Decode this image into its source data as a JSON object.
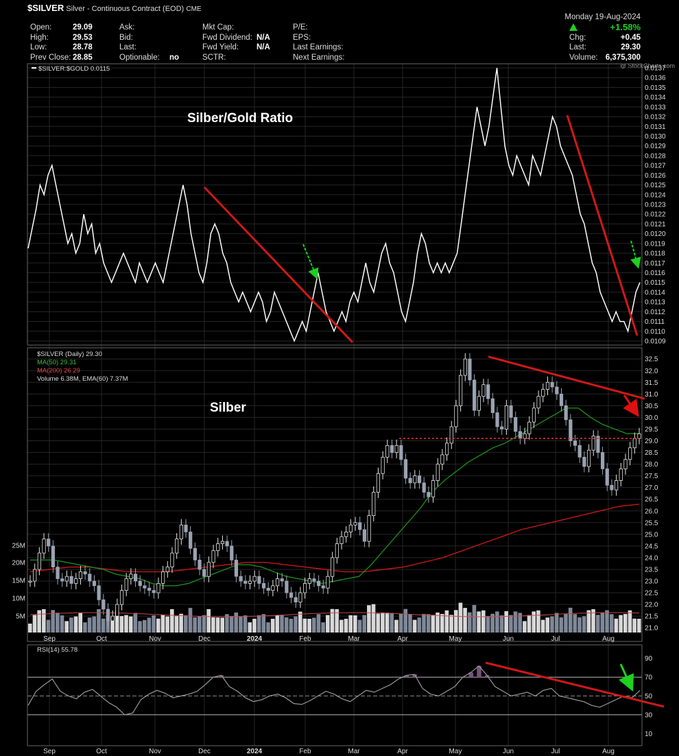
{
  "header": {
    "symbol": "$SILVER",
    "name": "Silver - Continuous Contract (EOD)",
    "exchange": "CME",
    "date": "Monday 19-Aug-2024",
    "change_pct": "+1.58%",
    "stats": {
      "open_label": "Open:",
      "open": "29.09",
      "high_label": "High:",
      "high": "29.53",
      "low_label": "Low:",
      "low": "28.78",
      "prev_label": "Prev Close:",
      "prev": "28.85",
      "ask_label": "Ask:",
      "bid_label": "Bid:",
      "last_label": "Last:",
      "opt_label": "Optionable:",
      "opt": "no",
      "mktcap_label": "Mkt Cap:",
      "fwddiv_label": "Fwd Dividend:",
      "fwddiv": "N/A",
      "fwdyield_label": "Fwd Yield:",
      "fwdyield": "N/A",
      "sctr_label": "SCTR:",
      "pe_label": "P/E:",
      "eps_label": "EPS:",
      "lastearn_label": "Last Earnings:",
      "nextearn_label": "Next Earnings:",
      "chg_label": "Chg:",
      "chg": "+0.45",
      "last2_label": "Last:",
      "last2": "29.30",
      "vol_label": "Volume:",
      "vol": "6,375,300"
    }
  },
  "watermark": "@ StockCharts.com",
  "colors": {
    "up": "#1fd01f",
    "down_arrow": "#e01010",
    "trend": "#d01818",
    "ma50": "#1a8a1a",
    "ma200": "#c41818",
    "rsi_fill": "#7a4f7a"
  },
  "chart_data": [
    {
      "type": "line",
      "panel": "ratio",
      "title": "Silber/Gold Ratio",
      "legend": "$SILVER:$GOLD 0.0115",
      "ylim": [
        0.0109,
        0.0137
      ],
      "yticks": [
        "0.0137",
        "0.0136",
        "0.0135",
        "0.0134",
        "0.0133",
        "0.0132",
        "0.0131",
        "0.0130",
        "0.0129",
        "0.0128",
        "0.0127",
        "0.0126",
        "0.0125",
        "0.0124",
        "0.0123",
        "0.0122",
        "0.0121",
        "0.0120",
        "0.0119",
        "0.0118",
        "0.0117",
        "0.0116",
        "0.0115",
        "0.0114",
        "0.0113",
        "0.0112",
        "0.0111",
        "0.0110",
        "0.0109"
      ],
      "series": [
        {
          "values": [
            0.01185,
            0.01205,
            0.01225,
            0.0125,
            0.0124,
            0.0126,
            0.0127,
            0.0125,
            0.0123,
            0.0121,
            0.0119,
            0.012,
            0.0118,
            0.0119,
            0.0122,
            0.012,
            0.0121,
            0.0118,
            0.0119,
            0.0117,
            0.0116,
            0.0115,
            0.0116,
            0.0117,
            0.0118,
            0.0117,
            0.0116,
            0.0115,
            0.0117,
            0.0116,
            0.0115,
            0.0116,
            0.0117,
            0.0116,
            0.0115,
            0.0117,
            0.0119,
            0.0121,
            0.0123,
            0.0125,
            0.0123,
            0.012,
            0.0118,
            0.0116,
            0.0115,
            0.0117,
            0.012,
            0.0121,
            0.012,
            0.0118,
            0.0117,
            0.0115,
            0.0114,
            0.0113,
            0.0114,
            0.0113,
            0.0112,
            0.0113,
            0.0114,
            0.0113,
            0.0111,
            0.0112,
            0.0114,
            0.0113,
            0.0112,
            0.0111,
            0.011,
            0.0109,
            0.011,
            0.0111,
            0.011,
            0.0112,
            0.0114,
            0.0116,
            0.0114,
            0.0112,
            0.0111,
            0.011,
            0.0111,
            0.0112,
            0.0111,
            0.0113,
            0.0114,
            0.0113,
            0.0115,
            0.0117,
            0.0115,
            0.0114,
            0.0116,
            0.0118,
            0.0119,
            0.0117,
            0.0116,
            0.0114,
            0.0112,
            0.0111,
            0.0113,
            0.0115,
            0.0118,
            0.012,
            0.0119,
            0.0117,
            0.0116,
            0.0117,
            0.0116,
            0.0117,
            0.0116,
            0.0117,
            0.0118,
            0.0121,
            0.0124,
            0.0127,
            0.013,
            0.0133,
            0.0131,
            0.0129,
            0.0131,
            0.0134,
            0.0137,
            0.0133,
            0.0129,
            0.0127,
            0.0126,
            0.0128,
            0.0127,
            0.0126,
            0.0125,
            0.0128,
            0.0127,
            0.0126,
            0.0128,
            0.013,
            0.0132,
            0.0131,
            0.0129,
            0.0128,
            0.0127,
            0.0126,
            0.0124,
            0.0122,
            0.0121,
            0.0119,
            0.0117,
            0.0116,
            0.0114,
            0.0113,
            0.0112,
            0.0111,
            0.0112,
            0.0111,
            0.0111,
            0.011,
            0.0112,
            0.0114,
            0.0115
          ]
        }
      ]
    },
    {
      "type": "candlestick",
      "panel": "price",
      "title": "Silber",
      "legend": [
        "$SILVER (Daily) 29.30",
        "MA(50) 29.31",
        "MA(200) 26.29",
        "Volume 6.38M, EMA(60) 7.37M"
      ],
      "ylim": [
        20.8,
        32.8
      ],
      "yticks": [
        "32.5",
        "32.0",
        "31.5",
        "31.0",
        "30.5",
        "30.0",
        "29.5",
        "29.0",
        "28.5",
        "28.0",
        "27.5",
        "27.0",
        "26.5",
        "26.0",
        "25.5",
        "25.0",
        "24.5",
        "24.0",
        "23.5",
        "23.0",
        "22.5",
        "22.0",
        "21.5",
        "21.0"
      ],
      "volume_ticks": [
        "25M",
        "20M",
        "15M",
        "10M",
        "5M"
      ],
      "x_labels": [
        "Sep",
        "Oct",
        "Nov",
        "Dec",
        "2024",
        "Feb",
        "Mar",
        "Apr",
        "May",
        "Jun",
        "Jul",
        "Aug"
      ],
      "close": [
        23.0,
        23.5,
        24.2,
        24.8,
        24.5,
        23.6,
        23.1,
        23.0,
        23.2,
        22.9,
        23.1,
        23.4,
        23.3,
        23.0,
        22.8,
        22.2,
        21.8,
        21.3,
        21.5,
        22.0,
        22.6,
        23.1,
        23.3,
        23.0,
        22.8,
        22.7,
        22.6,
        22.5,
        22.9,
        23.4,
        23.6,
        24.2,
        24.8,
        25.4,
        25.1,
        24.4,
        23.9,
        23.5,
        23.2,
        23.8,
        24.3,
        24.6,
        24.7,
        24.5,
        23.9,
        23.2,
        23.0,
        22.9,
        23.0,
        23.2,
        22.9,
        22.7,
        22.6,
        22.8,
        23.1,
        23.0,
        22.5,
        22.3,
        22.1,
        22.5,
        22.9,
        23.1,
        23.0,
        22.8,
        22.7,
        23.2,
        24.0,
        24.6,
        24.9,
        25.1,
        25.4,
        25.5,
        25.2,
        24.7,
        25.8,
        26.8,
        27.6,
        28.3,
        28.8,
        28.5,
        28.8,
        28.2,
        27.4,
        27.2,
        27.5,
        27.2,
        26.8,
        26.6,
        27.3,
        28.0,
        28.4,
        28.9,
        29.6,
        30.5,
        31.8,
        32.5,
        31.6,
        30.3,
        30.9,
        31.4,
        30.8,
        30.2,
        29.6,
        29.5,
        30.5,
        30.0,
        29.4,
        29.1,
        29.3,
        29.8,
        30.4,
        30.9,
        31.2,
        31.5,
        31.3,
        31.0,
        30.5,
        29.9,
        29.0,
        28.8,
        28.3,
        27.9,
        28.6,
        29.2,
        28.5,
        27.8,
        27.1,
        26.9,
        27.3,
        27.8,
        28.2,
        28.7,
        29.1,
        29.3
      ],
      "ma50": [
        23.9,
        23.9,
        23.9,
        23.8,
        23.7,
        23.6,
        23.5,
        23.3,
        23.2,
        23.1,
        22.9,
        22.8,
        22.8,
        22.9,
        23.1,
        23.3,
        23.5,
        23.7,
        23.7,
        23.6,
        23.4,
        23.2,
        23.1,
        23.0,
        22.9,
        23.0,
        23.1,
        23.2,
        23.7,
        24.3,
        24.9,
        25.5,
        26.1,
        26.8,
        27.3,
        27.7,
        28.1,
        28.4,
        28.7,
        28.9,
        29.2,
        29.5,
        29.8,
        30.1,
        30.4,
        30.4,
        30.0,
        29.7,
        29.5,
        29.3,
        29.31
      ],
      "ma200": [
        23.4,
        23.5,
        23.6,
        23.6,
        23.5,
        23.4,
        23.4,
        23.4,
        23.5,
        23.6,
        23.7,
        23.8,
        23.8,
        23.7,
        23.6,
        23.5,
        23.4,
        23.4,
        23.5,
        23.6,
        23.8,
        24.0,
        24.3,
        24.6,
        24.9,
        25.2,
        25.4,
        25.6,
        25.8,
        26.0,
        26.2,
        26.29
      ],
      "annotations": [
        "resistance 29.1 dashed",
        "downtrend from 32.6 to 30.8"
      ]
    },
    {
      "type": "line",
      "panel": "rsi",
      "legend": "RSI(14) 55.78",
      "ylim": [
        0,
        100
      ],
      "yticks": [
        "90",
        "70",
        "50",
        "30",
        "10"
      ],
      "guides": [
        70,
        50,
        30
      ],
      "series": [
        {
          "values": [
            40,
            55,
            62,
            68,
            55,
            50,
            47,
            54,
            57,
            50,
            43,
            38,
            30,
            32,
            46,
            52,
            56,
            53,
            48,
            50,
            52,
            55,
            62,
            70,
            72,
            60,
            55,
            48,
            44,
            46,
            50,
            52,
            48,
            42,
            41,
            45,
            50,
            55,
            52,
            47,
            44,
            50,
            56,
            54,
            58,
            62,
            68,
            72,
            73,
            58,
            52,
            50,
            55,
            60,
            70,
            75,
            82,
            72,
            60,
            55,
            50,
            52,
            54,
            50,
            56,
            58,
            50,
            48,
            46,
            44,
            40,
            38,
            42,
            46,
            50,
            48,
            55.78
          ]
        }
      ]
    }
  ]
}
